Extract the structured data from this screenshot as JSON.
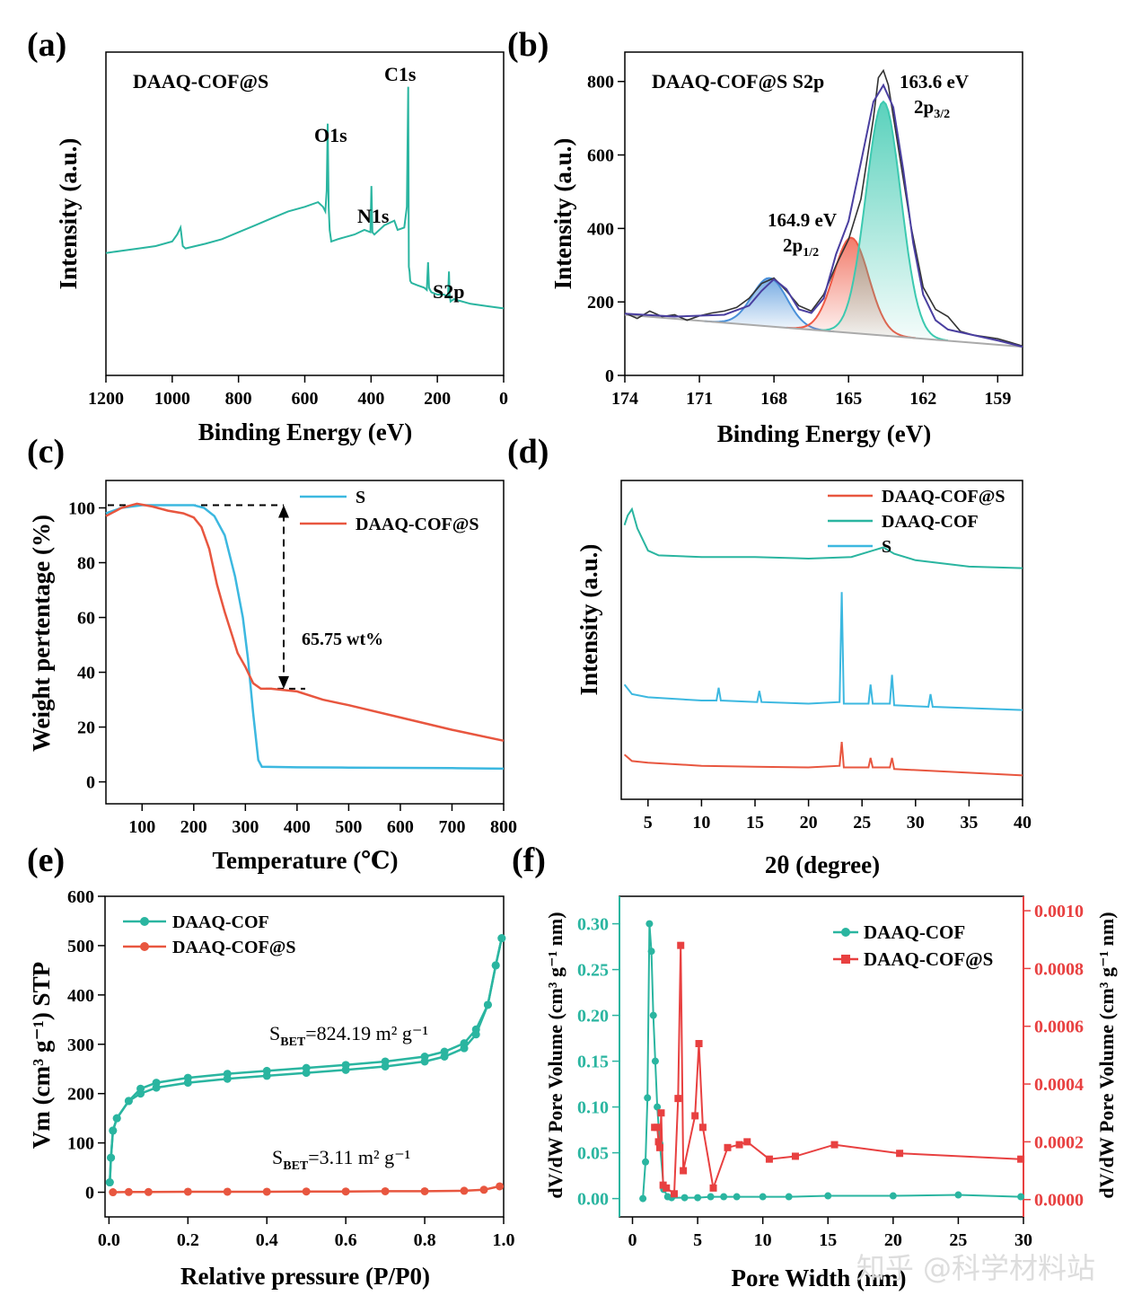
{
  "watermark": "知乎 @科学材料站",
  "chart_data": [
    {
      "id": "a",
      "type": "line",
      "panel_label": "(a)",
      "title": "DAAQ-COF@S",
      "xlabel": "Binding Energy (eV)",
      "ylabel": "Intensity (a.u.)",
      "xlim": [
        1200,
        0
      ],
      "ylim": [
        0,
        100
      ],
      "xticks": [
        1200,
        1000,
        800,
        600,
        400,
        200,
        0
      ],
      "color": "#2ab5a0",
      "series": [
        {
          "name": "survey",
          "x": [
            1200,
            1150,
            1100,
            1050,
            1000,
            985,
            975,
            968,
            960,
            900,
            850,
            800,
            750,
            700,
            650,
            600,
            560,
            545,
            538,
            534,
            531,
            528,
            525,
            520,
            500,
            450,
            420,
            402,
            399,
            396,
            390,
            360,
            330,
            320,
            300,
            292,
            288,
            286,
            284,
            282,
            278,
            260,
            240,
            232,
            228,
            225,
            222,
            218,
            200,
            180,
            168,
            165,
            163,
            160,
            150,
            100,
            50,
            0
          ],
          "y": [
            28,
            29,
            30,
            31,
            33,
            36,
            39,
            31,
            30,
            32,
            34,
            37,
            40,
            43,
            46,
            48,
            50,
            48,
            46,
            55,
            84,
            48,
            38,
            33,
            34,
            36,
            38,
            37,
            57,
            37,
            36,
            40,
            42,
            38,
            39,
            48,
            100,
            22,
            20,
            16,
            15,
            14,
            13,
            12,
            24,
            13,
            12,
            11,
            10,
            10,
            9,
            20,
            10,
            7,
            8,
            6,
            5,
            4
          ]
        }
      ],
      "annotations": [
        {
          "text": "O1s",
          "x": 531,
          "y": 87
        },
        {
          "text": "N1s",
          "x": 399,
          "y": 60
        },
        {
          "text": "C1s",
          "x": 286,
          "y": 103
        },
        {
          "text": "S2p",
          "x": 165,
          "y": 23
        }
      ]
    },
    {
      "id": "b",
      "type": "line",
      "panel_label": "(b)",
      "title": "DAAQ-COF@S S2p",
      "xlabel": "Binding Energy (eV)",
      "ylabel": "Intensity (a.u.)",
      "xlim": [
        174,
        158
      ],
      "ylim": [
        0,
        880
      ],
      "xticks": [
        174,
        171,
        168,
        165,
        162,
        159
      ],
      "yticks": [
        0,
        200,
        400,
        600,
        800
      ],
      "baseline": {
        "x": [
          174,
          158
        ],
        "y": [
          165,
          78
        ]
      },
      "series": [
        {
          "name": "raw",
          "color": "#333333",
          "x": [
            174,
            173.5,
            173,
            172.5,
            172,
            171.5,
            171,
            170.5,
            170,
            169.5,
            169,
            168.5,
            168,
            167.5,
            167,
            166.5,
            166,
            165.5,
            165,
            164.5,
            164,
            163.8,
            163.6,
            163.4,
            163,
            162.5,
            162,
            161.5,
            161,
            160.5,
            160,
            159.5,
            159,
            158.5,
            158
          ],
          "y": [
            170,
            155,
            175,
            160,
            165,
            150,
            162,
            170,
            175,
            185,
            210,
            250,
            265,
            230,
            190,
            175,
            220,
            300,
            370,
            480,
            700,
            810,
            830,
            790,
            620,
            410,
            240,
            180,
            160,
            120,
            110,
            105,
            100,
            90,
            80
          ]
        },
        {
          "name": "fit-envelope",
          "color": "#4a3fa0",
          "x": [
            174,
            172,
            170,
            169,
            168.5,
            168,
            167.5,
            167,
            166.5,
            166,
            165.5,
            165,
            164.5,
            164,
            163.6,
            163.2,
            162.8,
            162.4,
            162,
            161.5,
            161,
            160,
            159,
            158
          ],
          "y": [
            168,
            160,
            165,
            190,
            230,
            262,
            235,
            180,
            170,
            210,
            330,
            420,
            580,
            745,
            790,
            730,
            560,
            360,
            220,
            150,
            125,
            110,
            95,
            78
          ]
        }
      ],
      "peaks": [
        {
          "name": "peak-168.2",
          "center": 168.2,
          "height": 265,
          "color": "#4a90d9"
        },
        {
          "name": "2p1/2",
          "center": 164.9,
          "height": 375,
          "color": "#ef5a45"
        },
        {
          "name": "2p3/2",
          "center": 163.6,
          "height": 745,
          "color": "#3cc9b0"
        }
      ],
      "annotations": [
        {
          "text": "163.6 eV",
          "sub": "2p",
          "subscript": "3/2"
        },
        {
          "text": "164.9 eV",
          "sub": "2p",
          "subscript": "1/2"
        }
      ]
    },
    {
      "id": "c",
      "type": "line",
      "panel_label": "(c)",
      "xlabel": "Temperature (℃)",
      "ylabel": "Weight pertentage (%)",
      "xlim": [
        30,
        800
      ],
      "ylim": [
        -8,
        110
      ],
      "xticks": [
        100,
        200,
        300,
        400,
        500,
        600,
        700,
        800
      ],
      "yticks": [
        0,
        20,
        40,
        60,
        80,
        100
      ],
      "series": [
        {
          "name": "S",
          "color": "#3cb8e0",
          "x": [
            30,
            60,
            100,
            150,
            200,
            220,
            240,
            260,
            280,
            295,
            305,
            315,
            325,
            332,
            400,
            500,
            600,
            700,
            800
          ],
          "y": [
            98,
            100,
            101,
            101,
            101,
            100,
            97,
            90,
            75,
            60,
            45,
            25,
            8,
            5.5,
            5.3,
            5.2,
            5.1,
            5,
            4.8
          ]
        },
        {
          "name": "DAAQ-COF@S",
          "color": "#e8563f",
          "x": [
            30,
            60,
            90,
            120,
            150,
            180,
            200,
            215,
            230,
            245,
            260,
            275,
            285,
            300,
            315,
            330,
            350,
            400,
            450,
            500,
            600,
            700,
            800
          ],
          "y": [
            97,
            100,
            101.5,
            100.5,
            99,
            98,
            96.5,
            93,
            85,
            72,
            62,
            53,
            47,
            42,
            36,
            34,
            34,
            33,
            30,
            28,
            23.5,
            19,
            15
          ]
        }
      ],
      "annotations": [
        {
          "text": "65.75 wt%"
        }
      ]
    },
    {
      "id": "d",
      "type": "line",
      "panel_label": "(d)",
      "xlabel": "2θ (degree)",
      "ylabel": "Intensity (a.u.)",
      "xlim": [
        2.5,
        40
      ],
      "ylim": [
        0,
        100
      ],
      "xticks": [
        5,
        10,
        15,
        20,
        25,
        30,
        35,
        40
      ],
      "series": [
        {
          "name": "DAAQ-COF@S",
          "color": "#e8563f",
          "x": [
            2.8,
            3.5,
            5,
            10,
            15,
            20,
            22.9,
            23.1,
            23.3,
            25.6,
            25.8,
            26,
            27.6,
            27.8,
            28,
            40
          ],
          "y": [
            14,
            12,
            11.5,
            10.5,
            10.2,
            10,
            10.5,
            18,
            10,
            10,
            13,
            10,
            10,
            13,
            9.5,
            7.5
          ]
        },
        {
          "name": "DAAQ-COF",
          "color": "#2ab5a0",
          "x": [
            2.8,
            3.1,
            3.5,
            4,
            5,
            6,
            10,
            15,
            20,
            24,
            26,
            27,
            28,
            30,
            35,
            40
          ],
          "y": [
            86,
            89,
            91,
            85,
            78,
            76.5,
            76,
            76,
            75.5,
            76,
            78,
            79,
            77,
            75,
            73,
            72.5
          ]
        },
        {
          "name": "S",
          "color": "#3cb8e0",
          "x": [
            2.8,
            3.5,
            5,
            10,
            11.4,
            11.6,
            11.8,
            15.2,
            15.4,
            15.6,
            20,
            22.9,
            23.1,
            23.3,
            25.6,
            25.8,
            26,
            27.6,
            27.8,
            28,
            31.2,
            31.4,
            31.6,
            40
          ],
          "y": [
            36,
            33,
            32,
            31,
            31,
            35,
            31,
            30.5,
            34,
            30.5,
            30,
            30.5,
            65,
            30,
            30,
            36,
            30,
            30,
            39,
            29.5,
            29,
            33,
            29,
            28
          ]
        }
      ]
    },
    {
      "id": "e",
      "type": "scatter",
      "panel_label": "(e)",
      "xlabel": "Relative pressure (P/P0)",
      "ylabel": "Vm (cm³ g⁻¹) STP",
      "xlim": [
        0,
        1.0
      ],
      "ylim": [
        -50,
        600
      ],
      "xticks": [
        0.0,
        0.2,
        0.4,
        0.6,
        0.8,
        1.0
      ],
      "yticks": [
        0,
        100,
        200,
        300,
        400,
        500,
        600
      ],
      "series": [
        {
          "name": "DAAQ-COF",
          "color": "#2ab5a0",
          "x": [
            0.002,
            0.005,
            0.01,
            0.02,
            0.05,
            0.08,
            0.12,
            0.2,
            0.3,
            0.4,
            0.5,
            0.6,
            0.7,
            0.8,
            0.85,
            0.9,
            0.93,
            0.96,
            0.98,
            0.995
          ],
          "y": [
            20,
            70,
            125,
            150,
            185,
            200,
            212,
            222,
            230,
            236,
            242,
            248,
            255,
            265,
            275,
            292,
            320,
            380,
            460,
            515
          ]
        },
        {
          "name": "DAAQ-COF@S",
          "color": "#e8563f",
          "x": [
            0.01,
            0.05,
            0.1,
            0.2,
            0.3,
            0.4,
            0.5,
            0.6,
            0.7,
            0.8,
            0.9,
            0.95,
            0.99
          ],
          "y": [
            0,
            0.5,
            0.5,
            1,
            1,
            1,
            1.5,
            1.5,
            2,
            2,
            3,
            5,
            12
          ]
        }
      ],
      "annotations": [
        {
          "text": "S",
          "sub": "BET",
          "rest": "=824.19 m² g⁻¹"
        },
        {
          "text": "S",
          "sub": "BET",
          "rest": "=3.11 m² g⁻¹"
        }
      ]
    },
    {
      "id": "f",
      "type": "line",
      "panel_label": "(f)",
      "xlabel": "Pore Width (nm)",
      "ylabel": "dV/dW Pore Volume (cm³ g⁻¹ nm)",
      "y2label": "dV/dW Pore Volume (cm³ g⁻¹ nm)",
      "xlim": [
        -1,
        30
      ],
      "ylim": [
        -0.02,
        0.33
      ],
      "y2lim": [
        -6e-05,
        0.00105
      ],
      "xticks": [
        0,
        5,
        10,
        15,
        20,
        25,
        30
      ],
      "yticks": [
        0.0,
        0.05,
        0.1,
        0.15,
        0.2,
        0.25,
        0.3
      ],
      "y2ticks": [
        0.0,
        0.0002,
        0.0004,
        0.0006,
        0.0008,
        0.001
      ],
      "series": [
        {
          "name": "DAAQ-COF",
          "color": "#2ab5a0",
          "axis": "left",
          "x": [
            0.8,
            1.0,
            1.15,
            1.3,
            1.45,
            1.6,
            1.75,
            1.9,
            2.1,
            2.4,
            2.7,
            3,
            4,
            5,
            6,
            7,
            8,
            10,
            12,
            15,
            20,
            25,
            29.8
          ],
          "y": [
            0,
            0.04,
            0.11,
            0.3,
            0.27,
            0.2,
            0.15,
            0.1,
            0.06,
            0.01,
            0.002,
            0.001,
            0.001,
            0.001,
            0.002,
            0.002,
            0.002,
            0.002,
            0.002,
            0.003,
            0.003,
            0.004,
            0.002
          ]
        },
        {
          "name": "DAAQ-COF@S",
          "color": "#e84040",
          "axis": "right",
          "x": [
            1.7,
            1.9,
            2.0,
            2.1,
            2.2,
            2.35,
            2.6,
            3.2,
            3.5,
            3.7,
            3.9,
            4.8,
            5.1,
            5.4,
            6.2,
            7.3,
            8.2,
            8.8,
            10.5,
            12.5,
            15.5,
            20.5,
            29.8
          ],
          "y": [
            0.00025,
            0.00025,
            0.0002,
            0.00018,
            0.0003,
            5e-05,
            4e-05,
            2e-05,
            0.00035,
            0.00088,
            0.0001,
            0.00029,
            0.00054,
            0.00025,
            4e-05,
            0.00018,
            0.00019,
            0.0002,
            0.00014,
            0.00015,
            0.00019,
            0.00016,
            0.00014
          ]
        }
      ]
    }
  ]
}
